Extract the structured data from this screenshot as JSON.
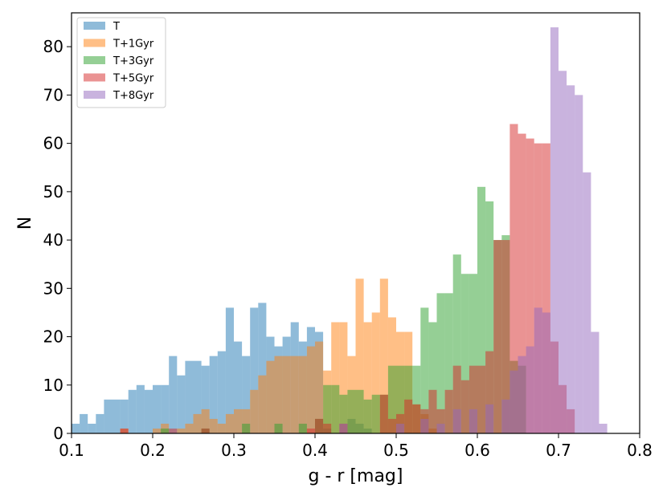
{
  "chart_data": {
    "type": "bar",
    "title": "",
    "xlabel": "g - r [mag]",
    "ylabel": "N",
    "xlim": [
      0.1,
      0.8
    ],
    "ylim": [
      0,
      87
    ],
    "xticks": [
      "0.1",
      "0.2",
      "0.3",
      "0.4",
      "0.5",
      "0.6",
      "0.7",
      "0.8"
    ],
    "yticks": [
      "0",
      "10",
      "20",
      "30",
      "40",
      "50",
      "60",
      "70",
      "80"
    ],
    "grid": false,
    "legend": "top-left",
    "histtype": "stepfilled-bars",
    "opacity": 0.5,
    "series": [
      {
        "name": "T",
        "color": "#1f77b4",
        "bins": [
          {
            "x": 0.1,
            "w": 0.01,
            "v": 2
          },
          {
            "x": 0.11,
            "w": 0.01,
            "v": 4
          },
          {
            "x": 0.12,
            "w": 0.01,
            "v": 2
          },
          {
            "x": 0.13,
            "w": 0.01,
            "v": 4
          },
          {
            "x": 0.14,
            "w": 0.01,
            "v": 7
          },
          {
            "x": 0.15,
            "w": 0.01,
            "v": 7
          },
          {
            "x": 0.16,
            "w": 0.01,
            "v": 7
          },
          {
            "x": 0.17,
            "w": 0.01,
            "v": 9
          },
          {
            "x": 0.18,
            "w": 0.01,
            "v": 10
          },
          {
            "x": 0.19,
            "w": 0.01,
            "v": 9
          },
          {
            "x": 0.2,
            "w": 0.01,
            "v": 10
          },
          {
            "x": 0.21,
            "w": 0.01,
            "v": 10
          },
          {
            "x": 0.22,
            "w": 0.01,
            "v": 16
          },
          {
            "x": 0.23,
            "w": 0.01,
            "v": 12
          },
          {
            "x": 0.24,
            "w": 0.01,
            "v": 15
          },
          {
            "x": 0.25,
            "w": 0.01,
            "v": 15
          },
          {
            "x": 0.26,
            "w": 0.01,
            "v": 14
          },
          {
            "x": 0.27,
            "w": 0.01,
            "v": 16
          },
          {
            "x": 0.28,
            "w": 0.01,
            "v": 17
          },
          {
            "x": 0.29,
            "w": 0.01,
            "v": 26
          },
          {
            "x": 0.3,
            "w": 0.01,
            "v": 19
          },
          {
            "x": 0.31,
            "w": 0.01,
            "v": 16
          },
          {
            "x": 0.32,
            "w": 0.01,
            "v": 26
          },
          {
            "x": 0.33,
            "w": 0.01,
            "v": 27
          },
          {
            "x": 0.34,
            "w": 0.01,
            "v": 20
          },
          {
            "x": 0.35,
            "w": 0.01,
            "v": 18
          },
          {
            "x": 0.36,
            "w": 0.01,
            "v": 20
          },
          {
            "x": 0.37,
            "w": 0.01,
            "v": 23
          },
          {
            "x": 0.38,
            "w": 0.01,
            "v": 19
          },
          {
            "x": 0.39,
            "w": 0.01,
            "v": 22
          },
          {
            "x": 0.4,
            "w": 0.01,
            "v": 21
          },
          {
            "x": 0.41,
            "w": 0.01,
            "v": 1
          },
          {
            "x": 0.44,
            "w": 0.01,
            "v": 3
          },
          {
            "x": 0.45,
            "w": 0.01,
            "v": 2
          },
          {
            "x": 0.46,
            "w": 0.01,
            "v": 1
          }
        ]
      },
      {
        "name": "T+1Gyr",
        "color": "#ff7f0e",
        "bins": [
          {
            "x": 0.16,
            "w": 0.01,
            "v": 1
          },
          {
            "x": 0.2,
            "w": 0.01,
            "v": 1
          },
          {
            "x": 0.21,
            "w": 0.01,
            "v": 2
          },
          {
            "x": 0.23,
            "w": 0.01,
            "v": 1
          },
          {
            "x": 0.24,
            "w": 0.01,
            "v": 2
          },
          {
            "x": 0.25,
            "w": 0.01,
            "v": 4
          },
          {
            "x": 0.26,
            "w": 0.01,
            "v": 5
          },
          {
            "x": 0.27,
            "w": 0.01,
            "v": 3
          },
          {
            "x": 0.28,
            "w": 0.01,
            "v": 2
          },
          {
            "x": 0.29,
            "w": 0.01,
            "v": 4
          },
          {
            "x": 0.3,
            "w": 0.01,
            "v": 5
          },
          {
            "x": 0.31,
            "w": 0.01,
            "v": 5
          },
          {
            "x": 0.32,
            "w": 0.01,
            "v": 9
          },
          {
            "x": 0.33,
            "w": 0.01,
            "v": 12
          },
          {
            "x": 0.34,
            "w": 0.01,
            "v": 15
          },
          {
            "x": 0.35,
            "w": 0.01,
            "v": 16
          },
          {
            "x": 0.36,
            "w": 0.01,
            "v": 16
          },
          {
            "x": 0.37,
            "w": 0.01,
            "v": 16
          },
          {
            "x": 0.38,
            "w": 0.01,
            "v": 16
          },
          {
            "x": 0.39,
            "w": 0.01,
            "v": 18
          },
          {
            "x": 0.4,
            "w": 0.01,
            "v": 19
          },
          {
            "x": 0.41,
            "w": 0.01,
            "v": 13
          },
          {
            "x": 0.42,
            "w": 0.01,
            "v": 23
          },
          {
            "x": 0.43,
            "w": 0.01,
            "v": 23
          },
          {
            "x": 0.44,
            "w": 0.01,
            "v": 16
          },
          {
            "x": 0.45,
            "w": 0.01,
            "v": 32
          },
          {
            "x": 0.46,
            "w": 0.01,
            "v": 23
          },
          {
            "x": 0.47,
            "w": 0.01,
            "v": 25
          },
          {
            "x": 0.48,
            "w": 0.01,
            "v": 32
          },
          {
            "x": 0.49,
            "w": 0.01,
            "v": 24
          },
          {
            "x": 0.5,
            "w": 0.01,
            "v": 21
          },
          {
            "x": 0.51,
            "w": 0.01,
            "v": 21
          },
          {
            "x": 0.52,
            "w": 0.01,
            "v": 6
          },
          {
            "x": 0.53,
            "w": 0.01,
            "v": 4
          },
          {
            "x": 0.54,
            "w": 0.01,
            "v": 1
          }
        ]
      },
      {
        "name": "T+3Gyr",
        "color": "#2ca02c",
        "bins": [
          {
            "x": 0.21,
            "w": 0.01,
            "v": 1
          },
          {
            "x": 0.26,
            "w": 0.01,
            "v": 1
          },
          {
            "x": 0.31,
            "w": 0.01,
            "v": 2
          },
          {
            "x": 0.35,
            "w": 0.01,
            "v": 2
          },
          {
            "x": 0.38,
            "w": 0.01,
            "v": 2
          },
          {
            "x": 0.4,
            "w": 0.01,
            "v": 3
          },
          {
            "x": 0.41,
            "w": 0.01,
            "v": 10
          },
          {
            "x": 0.42,
            "w": 0.01,
            "v": 10
          },
          {
            "x": 0.43,
            "w": 0.01,
            "v": 8
          },
          {
            "x": 0.44,
            "w": 0.01,
            "v": 9
          },
          {
            "x": 0.45,
            "w": 0.01,
            "v": 9
          },
          {
            "x": 0.46,
            "w": 0.01,
            "v": 7
          },
          {
            "x": 0.47,
            "w": 0.01,
            "v": 8
          },
          {
            "x": 0.48,
            "w": 0.01,
            "v": 8
          },
          {
            "x": 0.49,
            "w": 0.01,
            "v": 14
          },
          {
            "x": 0.5,
            "w": 0.01,
            "v": 14
          },
          {
            "x": 0.51,
            "w": 0.01,
            "v": 14
          },
          {
            "x": 0.52,
            "w": 0.01,
            "v": 14
          },
          {
            "x": 0.53,
            "w": 0.01,
            "v": 26
          },
          {
            "x": 0.54,
            "w": 0.01,
            "v": 23
          },
          {
            "x": 0.55,
            "w": 0.01,
            "v": 29
          },
          {
            "x": 0.56,
            "w": 0.01,
            "v": 29
          },
          {
            "x": 0.57,
            "w": 0.01,
            "v": 37
          },
          {
            "x": 0.58,
            "w": 0.01,
            "v": 33
          },
          {
            "x": 0.59,
            "w": 0.01,
            "v": 33
          },
          {
            "x": 0.6,
            "w": 0.01,
            "v": 51
          },
          {
            "x": 0.61,
            "w": 0.01,
            "v": 48
          },
          {
            "x": 0.62,
            "w": 0.01,
            "v": 40
          },
          {
            "x": 0.63,
            "w": 0.01,
            "v": 41
          },
          {
            "x": 0.64,
            "w": 0.01,
            "v": 15
          },
          {
            "x": 0.65,
            "w": 0.01,
            "v": 14
          }
        ]
      },
      {
        "name": "T+5Gyr",
        "color": "#d62728",
        "bins": [
          {
            "x": 0.16,
            "w": 0.01,
            "v": 1
          },
          {
            "x": 0.22,
            "w": 0.01,
            "v": 1
          },
          {
            "x": 0.26,
            "w": 0.01,
            "v": 1
          },
          {
            "x": 0.39,
            "w": 0.01,
            "v": 1
          },
          {
            "x": 0.4,
            "w": 0.01,
            "v": 3
          },
          {
            "x": 0.41,
            "w": 0.01,
            "v": 2
          },
          {
            "x": 0.43,
            "w": 0.01,
            "v": 2
          },
          {
            "x": 0.48,
            "w": 0.01,
            "v": 8
          },
          {
            "x": 0.49,
            "w": 0.01,
            "v": 3
          },
          {
            "x": 0.5,
            "w": 0.01,
            "v": 4
          },
          {
            "x": 0.51,
            "w": 0.01,
            "v": 7
          },
          {
            "x": 0.52,
            "w": 0.01,
            "v": 6
          },
          {
            "x": 0.53,
            "w": 0.01,
            "v": 5
          },
          {
            "x": 0.54,
            "w": 0.01,
            "v": 9
          },
          {
            "x": 0.55,
            "w": 0.01,
            "v": 5
          },
          {
            "x": 0.56,
            "w": 0.01,
            "v": 9
          },
          {
            "x": 0.57,
            "w": 0.01,
            "v": 14
          },
          {
            "x": 0.58,
            "w": 0.01,
            "v": 11
          },
          {
            "x": 0.59,
            "w": 0.01,
            "v": 14
          },
          {
            "x": 0.6,
            "w": 0.01,
            "v": 14
          },
          {
            "x": 0.61,
            "w": 0.01,
            "v": 17
          },
          {
            "x": 0.62,
            "w": 0.01,
            "v": 40
          },
          {
            "x": 0.63,
            "w": 0.01,
            "v": 40
          },
          {
            "x": 0.64,
            "w": 0.01,
            "v": 64
          },
          {
            "x": 0.65,
            "w": 0.01,
            "v": 62
          },
          {
            "x": 0.66,
            "w": 0.01,
            "v": 61
          },
          {
            "x": 0.67,
            "w": 0.01,
            "v": 60
          },
          {
            "x": 0.68,
            "w": 0.01,
            "v": 60
          },
          {
            "x": 0.69,
            "w": 0.01,
            "v": 19
          },
          {
            "x": 0.7,
            "w": 0.01,
            "v": 10
          },
          {
            "x": 0.71,
            "w": 0.01,
            "v": 5
          }
        ]
      },
      {
        "name": "T+8Gyr",
        "color": "#9467bd",
        "bins": [
          {
            "x": 0.43,
            "w": 0.01,
            "v": 2
          },
          {
            "x": 0.5,
            "w": 0.01,
            "v": 2
          },
          {
            "x": 0.53,
            "w": 0.01,
            "v": 3
          },
          {
            "x": 0.55,
            "w": 0.01,
            "v": 2
          },
          {
            "x": 0.57,
            "w": 0.01,
            "v": 5
          },
          {
            "x": 0.59,
            "w": 0.01,
            "v": 5
          },
          {
            "x": 0.61,
            "w": 0.01,
            "v": 6
          },
          {
            "x": 0.63,
            "w": 0.01,
            "v": 7
          },
          {
            "x": 0.64,
            "w": 0.01,
            "v": 13
          },
          {
            "x": 0.65,
            "w": 0.01,
            "v": 16
          },
          {
            "x": 0.66,
            "w": 0.01,
            "v": 18
          },
          {
            "x": 0.67,
            "w": 0.01,
            "v": 26
          },
          {
            "x": 0.68,
            "w": 0.01,
            "v": 25
          },
          {
            "x": 0.69,
            "w": 0.01,
            "v": 84
          },
          {
            "x": 0.7,
            "w": 0.01,
            "v": 75
          },
          {
            "x": 0.71,
            "w": 0.01,
            "v": 72
          },
          {
            "x": 0.72,
            "w": 0.01,
            "v": 70
          },
          {
            "x": 0.73,
            "w": 0.01,
            "v": 54
          },
          {
            "x": 0.74,
            "w": 0.01,
            "v": 21
          },
          {
            "x": 0.75,
            "w": 0.01,
            "v": 2
          }
        ]
      }
    ]
  }
}
